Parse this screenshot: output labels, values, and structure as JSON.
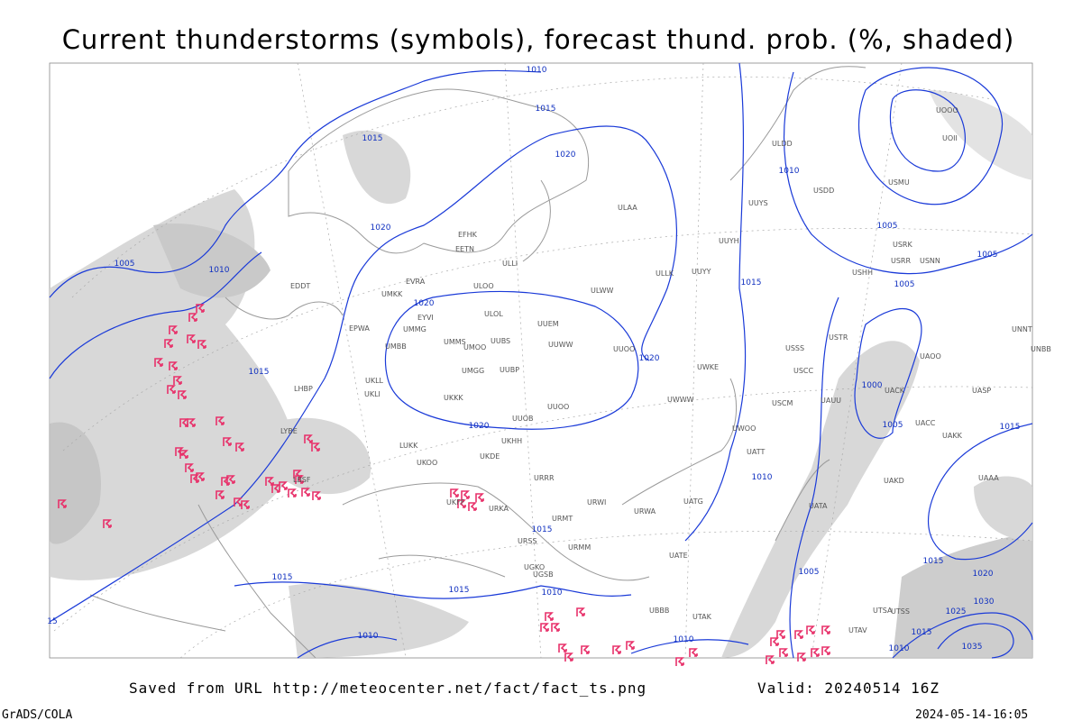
{
  "header": {
    "title": "Current thunderstorms (symbols), forecast thund. prob. (%, shaded)"
  },
  "footer": {
    "source": "Saved from URL http://meteocenter.net/fact/fact_ts.png",
    "valid": "Valid: 20240514 16Z",
    "credit": "GrADS/COLA",
    "timestamp": "2024-05-14-16:05"
  },
  "map": {
    "isobar_labels": [
      "1010",
      "1015",
      "1015",
      "1020",
      "1020",
      "1005",
      "1010",
      "1020",
      "1015",
      "1020",
      "1020",
      "1010",
      "1015",
      "1005",
      "1005",
      "1005",
      "1000",
      "1005",
      "1015",
      "1010",
      "1015",
      "1015",
      "1015",
      "1010",
      "1010",
      "1010",
      "1005",
      "1015",
      "1020",
      "1030",
      "1025",
      "1015",
      "1010",
      "1035",
      "15"
    ],
    "stations": [
      "UUYY",
      "ULLI",
      "ULOO",
      "ULOL",
      "UUEM",
      "UUWW",
      "UUOO",
      "UMMS",
      "UMOO",
      "UUBS",
      "UMGG",
      "UUBP",
      "UKKK",
      "UUOO",
      "UUOB",
      "UKHH",
      "UKDE",
      "UKOO",
      "URRR",
      "URWI",
      "URMT",
      "URSS",
      "URMM",
      "UATE",
      "UATG",
      "URWA",
      "UWWW",
      "UWKE",
      "UWOO",
      "UATT",
      "USSS",
      "USCC",
      "USCM",
      "UAUU",
      "USTR",
      "USHH",
      "USRR",
      "USRK",
      "USNN",
      "USMU",
      "USDD",
      "ULDD",
      "UUYS",
      "UUYH",
      "ULLK",
      "ULWW",
      "ULAA",
      "EFHK",
      "EETN",
      "EVRA",
      "EYVI",
      "UMKK",
      "UMMG",
      "UMBB",
      "EPWA",
      "EDDT",
      "LHBP",
      "UKLL",
      "UKLI",
      "LYBE",
      "LBSF",
      "LUKK",
      "UKFF",
      "URKA",
      "UGKO",
      "UGSB",
      "UBBB",
      "UTAK",
      "UACC",
      "UAKK",
      "UAKD",
      "UAAA",
      "UATA",
      "UAOO",
      "UASP",
      "UACK",
      "UNNT",
      "UNBB",
      "UOOO",
      "UOII",
      "UTSA",
      "UTSS",
      "UTAV"
    ]
  }
}
